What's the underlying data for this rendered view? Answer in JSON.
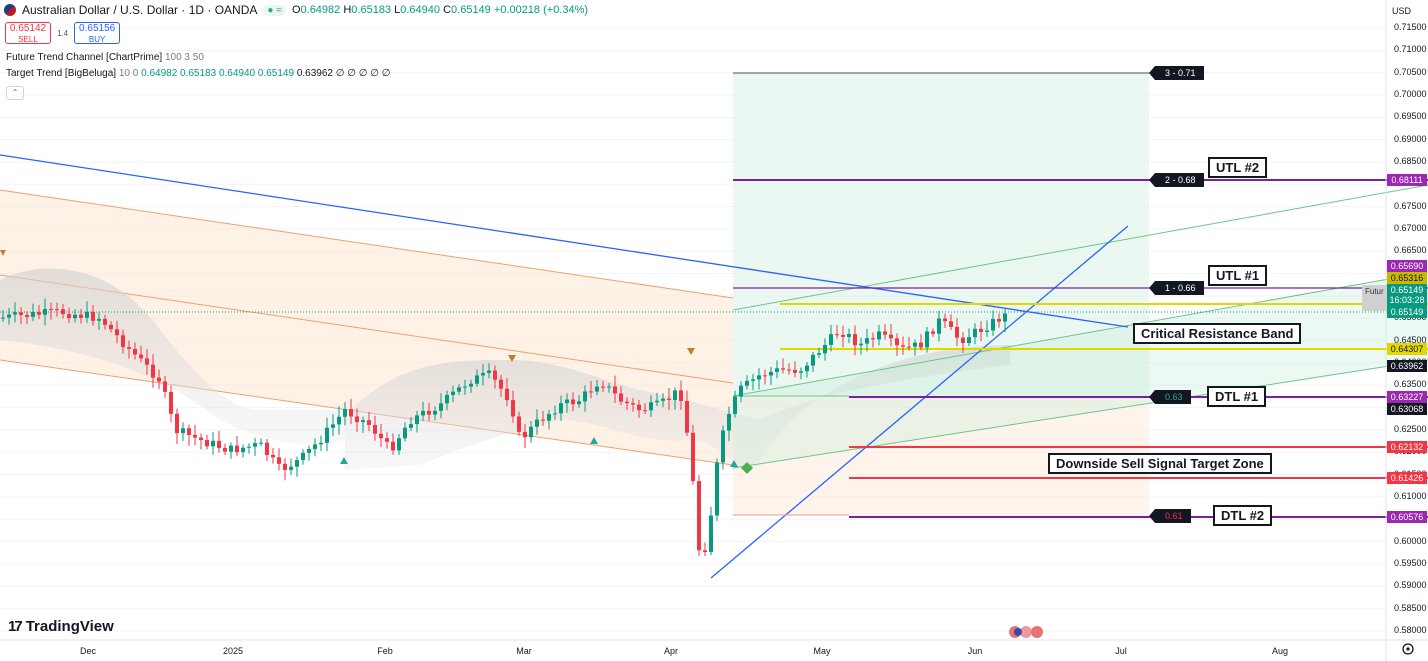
{
  "header": {
    "title": "Australian Dollar / U.S. Dollar · 1D · OANDA",
    "o_label": "O",
    "o": "0.64982",
    "h_label": "H",
    "h": "0.65183",
    "l_label": "L",
    "l": "0.64940",
    "c_label": "C",
    "c": "0.65149",
    "change": "+0.00218 (+0.34%)"
  },
  "trade": {
    "sell_price": "0.65142",
    "sell_label": "SELL",
    "spread": "1.4",
    "buy_price": "0.65156",
    "buy_label": "BUY"
  },
  "indicators": [
    {
      "name": "Future Trend Channel [ChartPrime]",
      "params": "100 3 50"
    },
    {
      "name": "Target Trend [BigBeluga]",
      "params": "10 0",
      "values": "0.64982  0.65183  0.64940  0.65149",
      "extra": "0.63962  ∅  ∅  ∅  ∅  ∅"
    }
  ],
  "collapse_symbol": "⌃",
  "currency": "USD",
  "y_axis": [
    "0.71500",
    "0.71000",
    "0.70500",
    "0.70000",
    "0.69500",
    "0.69000",
    "0.68500",
    "0.68000",
    "0.67500",
    "0.67000",
    "0.66500",
    "0.66000",
    "0.65500",
    "0.65000",
    "0.64500",
    "0.64000",
    "0.63500",
    "0.63000",
    "0.62500",
    "0.62000",
    "0.61500",
    "0.61000",
    "0.60500",
    "0.60000",
    "0.59500",
    "0.59000",
    "0.58500",
    "0.58000"
  ],
  "price_tags": [
    {
      "value": "0.68111",
      "color": "#9c27b0"
    },
    {
      "value": "0.65690",
      "color": "#9c27b0"
    },
    {
      "value": "0.65316",
      "color": "#c9b800",
      "text": "#131722"
    },
    {
      "value": "0.65149",
      "color": "#089981"
    },
    {
      "value": "16:03:28",
      "color": "#089981"
    },
    {
      "value": "0.65149",
      "color": "#089981"
    },
    {
      "value": "0.64307",
      "color": "#e3d700",
      "text": "#131722"
    },
    {
      "value": "0.63962",
      "color": "#131722"
    },
    {
      "value": "0.63227",
      "color": "#9c27b0"
    },
    {
      "value": "0.63068",
      "color": "#131722"
    },
    {
      "value": "0.62132",
      "color": "#f23645"
    },
    {
      "value": "0.61426",
      "color": "#f23645"
    },
    {
      "value": "0.60576",
      "color": "#9c27b0"
    }
  ],
  "x_axis": [
    "Dec",
    "2025",
    "Feb",
    "Mar",
    "Apr",
    "May",
    "Jun",
    "Jul",
    "Aug"
  ],
  "annotations": {
    "utl2": "UTL #2",
    "utl1": "UTL #1",
    "crb": "Critical Resistance Band",
    "dtl1": "DTL #1",
    "dss": "Downside Sell Signal Target Zone",
    "dtl2": "DTL #2"
  },
  "targets": {
    "t3": "3 - 0.71",
    "t2": "2 - 0.68",
    "t1": "1 - 0.66",
    "t0": "0.63",
    "tm": "0.61"
  },
  "future_label": "Futur",
  "brand": "TradingView",
  "chart_data": {
    "type": "candlestick",
    "symbol": "AUDUSD",
    "ylim": [
      0.578,
      0.7175
    ],
    "levels": [
      0.68111,
      0.6569,
      0.65316,
      0.64307,
      0.63227,
      0.62132,
      0.61426,
      0.60576
    ],
    "last_close": 0.65149
  }
}
